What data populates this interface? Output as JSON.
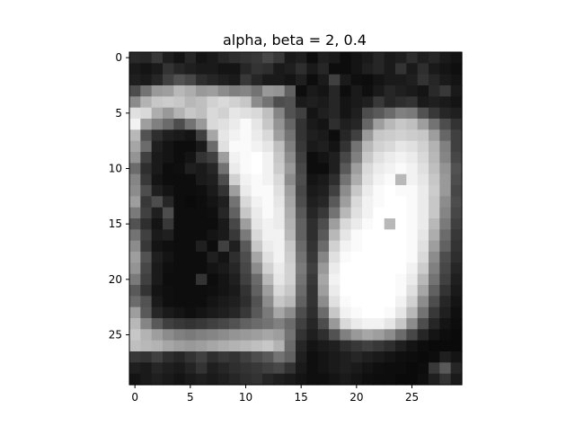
{
  "figure": {
    "title": "alpha, beta = 2, 0.4"
  },
  "chart_data": {
    "type": "heatmap",
    "title": "alpha, beta = 2, 0.4",
    "xlabel": "",
    "ylabel": "",
    "colormap": "gray",
    "rows": 30,
    "cols": 30,
    "xlim": [
      -0.5,
      29.5
    ],
    "ylim": [
      29.5,
      -0.5
    ],
    "xticks": [
      0,
      5,
      10,
      15,
      20,
      25
    ],
    "yticks": [
      0,
      5,
      10,
      15,
      20,
      25
    ],
    "grid": false,
    "values": [
      [
        0.16,
        0.15,
        0.22,
        0.12,
        0.08,
        0.15,
        0.08,
        0.1,
        0.15,
        0.18,
        0.2,
        0.22,
        0.28,
        0.22,
        0.1,
        0.12,
        0.05,
        0.12,
        0.1,
        0.05,
        0.08,
        0.1,
        0.15,
        0.1,
        0.12,
        0.18,
        0.12,
        0.15,
        0.1,
        0.08
      ],
      [
        0.1,
        0.08,
        0.1,
        0.2,
        0.15,
        0.12,
        0.1,
        0.1,
        0.08,
        0.08,
        0.15,
        0.2,
        0.18,
        0.1,
        0.12,
        0.18,
        0.1,
        0.15,
        0.05,
        0.05,
        0.08,
        0.12,
        0.15,
        0.1,
        0.2,
        0.1,
        0.18,
        0.1,
        0.08,
        0.06
      ],
      [
        0.12,
        0.1,
        0.15,
        0.25,
        0.32,
        0.28,
        0.18,
        0.15,
        0.12,
        0.1,
        0.22,
        0.15,
        0.1,
        0.1,
        0.08,
        0.12,
        0.05,
        0.1,
        0.25,
        0.1,
        0.06,
        0.05,
        0.08,
        0.1,
        0.1,
        0.12,
        0.2,
        0.15,
        0.1,
        0.08
      ],
      [
        0.3,
        0.45,
        0.6,
        0.62,
        0.72,
        0.68,
        0.6,
        0.62,
        0.55,
        0.5,
        0.52,
        0.45,
        0.6,
        0.58,
        0.38,
        0.05,
        0.1,
        0.08,
        0.15,
        0.05,
        0.1,
        0.06,
        0.1,
        0.15,
        0.12,
        0.1,
        0.08,
        0.16,
        0.22,
        0.1
      ],
      [
        0.55,
        0.7,
        0.78,
        0.8,
        0.78,
        0.72,
        0.75,
        0.82,
        0.85,
        0.82,
        0.78,
        0.55,
        0.45,
        0.3,
        0.32,
        0.1,
        0.12,
        0.1,
        0.15,
        0.08,
        0.1,
        0.12,
        0.22,
        0.15,
        0.18,
        0.2,
        0.1,
        0.12,
        0.1,
        0.08
      ],
      [
        0.88,
        0.85,
        0.68,
        0.6,
        0.7,
        0.78,
        0.75,
        0.85,
        0.82,
        0.9,
        0.88,
        0.85,
        0.75,
        0.52,
        0.32,
        0.25,
        0.08,
        0.12,
        0.15,
        0.08,
        0.12,
        0.3,
        0.35,
        0.42,
        0.5,
        0.48,
        0.32,
        0.22,
        0.15,
        0.12
      ],
      [
        0.95,
        0.62,
        0.5,
        0.42,
        0.3,
        0.45,
        0.6,
        0.85,
        0.88,
        0.92,
        0.98,
        0.9,
        0.78,
        0.58,
        0.4,
        0.2,
        0.1,
        0.08,
        0.18,
        0.12,
        0.15,
        0.4,
        0.62,
        0.72,
        0.78,
        0.75,
        0.62,
        0.45,
        0.3,
        0.2
      ],
      [
        0.72,
        0.32,
        0.18,
        0.12,
        0.1,
        0.08,
        0.25,
        0.65,
        0.9,
        0.95,
        0.98,
        0.92,
        0.85,
        0.62,
        0.45,
        0.2,
        0.12,
        0.1,
        0.05,
        0.15,
        0.25,
        0.6,
        0.78,
        0.8,
        0.82,
        0.8,
        0.78,
        0.62,
        0.4,
        0.25
      ],
      [
        0.65,
        0.42,
        0.12,
        0.08,
        0.05,
        0.05,
        0.1,
        0.42,
        0.88,
        0.98,
        0.98,
        0.95,
        0.9,
        0.75,
        0.5,
        0.22,
        0.1,
        0.12,
        0.08,
        0.2,
        0.45,
        0.72,
        0.82,
        0.85,
        0.9,
        0.88,
        0.82,
        0.7,
        0.5,
        0.25
      ],
      [
        0.58,
        0.25,
        0.1,
        0.08,
        0.05,
        0.08,
        0.2,
        0.25,
        0.62,
        0.95,
        0.98,
        1.0,
        0.95,
        0.78,
        0.55,
        0.25,
        0.05,
        0.08,
        0.12,
        0.28,
        0.5,
        0.78,
        0.88,
        0.92,
        0.95,
        0.92,
        0.85,
        0.72,
        0.52,
        0.28
      ],
      [
        0.42,
        0.18,
        0.1,
        0.05,
        0.06,
        0.12,
        0.1,
        0.15,
        0.45,
        0.92,
        0.98,
        1.0,
        0.95,
        0.8,
        0.6,
        0.28,
        0.05,
        0.05,
        0.12,
        0.35,
        0.62,
        0.85,
        0.92,
        0.95,
        0.98,
        0.95,
        0.88,
        0.75,
        0.58,
        0.32
      ],
      [
        0.52,
        0.22,
        0.08,
        0.05,
        0.05,
        0.05,
        0.1,
        0.12,
        0.3,
        0.82,
        0.95,
        0.98,
        0.95,
        0.85,
        0.55,
        0.3,
        0.08,
        0.1,
        0.18,
        0.45,
        0.68,
        0.88,
        0.95,
        0.98,
        0.72,
        0.95,
        0.9,
        0.78,
        0.6,
        0.3
      ],
      [
        0.55,
        0.3,
        0.12,
        0.08,
        0.05,
        0.05,
        0.06,
        0.1,
        0.2,
        0.62,
        0.92,
        0.98,
        0.98,
        0.88,
        0.62,
        0.28,
        0.1,
        0.12,
        0.25,
        0.55,
        0.78,
        0.92,
        0.98,
        1.0,
        0.98,
        0.98,
        0.92,
        0.8,
        0.6,
        0.28
      ],
      [
        0.62,
        0.22,
        0.3,
        0.15,
        0.05,
        0.04,
        0.05,
        0.08,
        0.12,
        0.45,
        0.85,
        0.95,
        0.98,
        0.9,
        0.65,
        0.3,
        0.12,
        0.15,
        0.35,
        0.62,
        0.85,
        0.95,
        0.98,
        1.0,
        1.0,
        0.98,
        0.92,
        0.78,
        0.55,
        0.3
      ],
      [
        0.48,
        0.25,
        0.12,
        0.3,
        0.05,
        0.05,
        0.05,
        0.06,
        0.15,
        0.38,
        0.78,
        0.92,
        0.98,
        0.92,
        0.68,
        0.35,
        0.15,
        0.22,
        0.45,
        0.72,
        0.88,
        0.95,
        1.0,
        1.0,
        1.0,
        0.98,
        0.92,
        0.78,
        0.52,
        0.28
      ],
      [
        0.32,
        0.18,
        0.08,
        0.22,
        0.05,
        0.05,
        0.05,
        0.05,
        0.1,
        0.28,
        0.62,
        0.9,
        0.95,
        0.92,
        0.7,
        0.38,
        0.18,
        0.3,
        0.62,
        0.85,
        0.92,
        0.98,
        1.0,
        0.72,
        1.0,
        0.98,
        0.92,
        0.72,
        0.48,
        0.25
      ],
      [
        0.45,
        0.25,
        0.1,
        0.12,
        0.05,
        0.05,
        0.05,
        0.08,
        0.1,
        0.22,
        0.48,
        0.85,
        0.95,
        0.95,
        0.72,
        0.38,
        0.18,
        0.35,
        0.72,
        0.9,
        0.98,
        1.0,
        1.0,
        1.0,
        1.0,
        0.98,
        0.9,
        0.68,
        0.42,
        0.22
      ],
      [
        0.55,
        0.22,
        0.08,
        0.06,
        0.05,
        0.05,
        0.12,
        0.05,
        0.25,
        0.12,
        0.35,
        0.78,
        0.92,
        0.95,
        0.78,
        0.42,
        0.2,
        0.42,
        0.82,
        0.95,
        0.98,
        1.0,
        1.0,
        1.0,
        1.0,
        0.98,
        0.88,
        0.62,
        0.38,
        0.2
      ],
      [
        0.62,
        0.32,
        0.12,
        0.08,
        0.05,
        0.05,
        0.05,
        0.12,
        0.08,
        0.18,
        0.3,
        0.65,
        0.88,
        0.95,
        0.8,
        0.45,
        0.22,
        0.52,
        0.88,
        0.98,
        1.0,
        1.0,
        1.0,
        1.0,
        1.0,
        0.98,
        0.85,
        0.55,
        0.3,
        0.18
      ],
      [
        0.58,
        0.28,
        0.1,
        0.06,
        0.05,
        0.05,
        0.05,
        0.08,
        0.1,
        0.15,
        0.28,
        0.55,
        0.82,
        0.92,
        0.82,
        0.48,
        0.25,
        0.6,
        0.92,
        1.0,
        1.0,
        1.0,
        1.0,
        1.0,
        1.0,
        0.95,
        0.8,
        0.5,
        0.28,
        0.15
      ],
      [
        0.48,
        0.25,
        0.1,
        0.05,
        0.05,
        0.05,
        0.2,
        0.05,
        0.08,
        0.12,
        0.25,
        0.42,
        0.72,
        0.9,
        0.82,
        0.45,
        0.22,
        0.65,
        0.95,
        1.0,
        1.0,
        1.0,
        1.0,
        1.0,
        0.98,
        0.92,
        0.72,
        0.45,
        0.25,
        0.12
      ],
      [
        0.35,
        0.2,
        0.08,
        0.06,
        0.05,
        0.05,
        0.05,
        0.06,
        0.08,
        0.1,
        0.2,
        0.38,
        0.62,
        0.85,
        0.78,
        0.42,
        0.2,
        0.62,
        0.92,
        1.0,
        1.0,
        1.0,
        1.0,
        1.0,
        0.98,
        0.88,
        0.65,
        0.38,
        0.2,
        0.1
      ],
      [
        0.42,
        0.32,
        0.1,
        0.06,
        0.05,
        0.05,
        0.05,
        0.08,
        0.1,
        0.12,
        0.18,
        0.32,
        0.55,
        0.78,
        0.72,
        0.38,
        0.2,
        0.55,
        0.88,
        0.98,
        1.0,
        1.0,
        1.0,
        1.0,
        0.95,
        0.82,
        0.55,
        0.3,
        0.15,
        0.08
      ],
      [
        0.62,
        0.35,
        0.15,
        0.1,
        0.08,
        0.06,
        0.08,
        0.1,
        0.12,
        0.15,
        0.22,
        0.35,
        0.48,
        0.65,
        0.55,
        0.3,
        0.18,
        0.42,
        0.78,
        0.95,
        0.98,
        1.0,
        1.0,
        0.98,
        0.9,
        0.72,
        0.45,
        0.22,
        0.12,
        0.06
      ],
      [
        0.72,
        0.52,
        0.35,
        0.25,
        0.22,
        0.2,
        0.22,
        0.25,
        0.28,
        0.32,
        0.38,
        0.42,
        0.45,
        0.5,
        0.42,
        0.25,
        0.15,
        0.3,
        0.6,
        0.85,
        0.92,
        0.95,
        0.95,
        0.9,
        0.78,
        0.55,
        0.3,
        0.15,
        0.08,
        0.05
      ],
      [
        0.78,
        0.7,
        0.62,
        0.55,
        0.5,
        0.48,
        0.5,
        0.52,
        0.55,
        0.58,
        0.6,
        0.62,
        0.65,
        0.62,
        0.45,
        0.2,
        0.12,
        0.18,
        0.32,
        0.5,
        0.6,
        0.65,
        0.62,
        0.55,
        0.42,
        0.28,
        0.15,
        0.08,
        0.05,
        0.04
      ],
      [
        0.75,
        0.72,
        0.7,
        0.65,
        0.62,
        0.6,
        0.62,
        0.65,
        0.68,
        0.7,
        0.72,
        0.75,
        0.78,
        0.7,
        0.42,
        0.15,
        0.08,
        0.1,
        0.12,
        0.18,
        0.22,
        0.25,
        0.22,
        0.18,
        0.12,
        0.08,
        0.05,
        0.04,
        0.04,
        0.04
      ],
      [
        0.22,
        0.2,
        0.25,
        0.18,
        0.15,
        0.2,
        0.25,
        0.18,
        0.22,
        0.2,
        0.25,
        0.3,
        0.35,
        0.45,
        0.38,
        0.12,
        0.06,
        0.08,
        0.1,
        0.12,
        0.15,
        0.12,
        0.1,
        0.08,
        0.06,
        0.05,
        0.04,
        0.05,
        0.12,
        0.08
      ],
      [
        0.12,
        0.1,
        0.15,
        0.12,
        0.1,
        0.14,
        0.2,
        0.12,
        0.15,
        0.18,
        0.2,
        0.22,
        0.25,
        0.28,
        0.2,
        0.1,
        0.06,
        0.08,
        0.1,
        0.12,
        0.1,
        0.08,
        0.06,
        0.05,
        0.05,
        0.04,
        0.05,
        0.22,
        0.35,
        0.15
      ],
      [
        0.08,
        0.1,
        0.12,
        0.1,
        0.08,
        0.1,
        0.12,
        0.1,
        0.12,
        0.15,
        0.18,
        0.2,
        0.15,
        0.12,
        0.1,
        0.08,
        0.06,
        0.06,
        0.08,
        0.1,
        0.08,
        0.06,
        0.05,
        0.05,
        0.04,
        0.04,
        0.06,
        0.12,
        0.2,
        0.1
      ]
    ]
  }
}
